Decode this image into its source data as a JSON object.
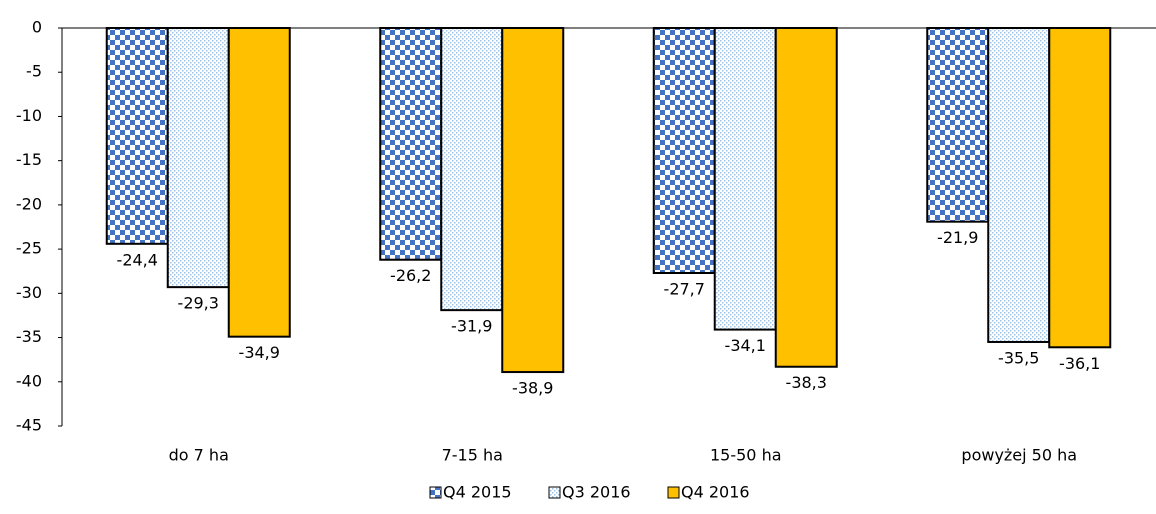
{
  "chart_data": {
    "type": "bar",
    "categories": [
      "do 7 ha",
      "7-15 ha",
      "15-50 ha",
      "powyżej 50 ha"
    ],
    "series": [
      {
        "name": "Q4 2015",
        "color": "#4472c4",
        "pattern": "checker",
        "values": [
          -24.4,
          -26.2,
          -27.7,
          -21.9
        ],
        "value_labels": [
          "-24,4",
          "-26,2",
          "-27,7",
          "-21,9"
        ]
      },
      {
        "name": "Q3 2016",
        "color": "#9dc3e6",
        "pattern": "dots",
        "values": [
          -29.3,
          -31.9,
          -34.1,
          -35.5
        ],
        "value_labels": [
          "-29,3",
          "-31,9",
          "-34,1",
          "-35,5"
        ]
      },
      {
        "name": "Q4 2016",
        "color": "#ffc000",
        "pattern": "solid",
        "values": [
          -34.9,
          -38.9,
          -38.3,
          -36.1
        ],
        "value_labels": [
          "-34,9",
          "-38,9",
          "-38,3",
          "-36,1"
        ]
      }
    ],
    "ylim": [
      -45,
      0
    ],
    "yticks": [
      0,
      -5,
      -10,
      -15,
      -20,
      -25,
      -30,
      -35,
      -40,
      -45
    ],
    "legend": "bottom"
  }
}
